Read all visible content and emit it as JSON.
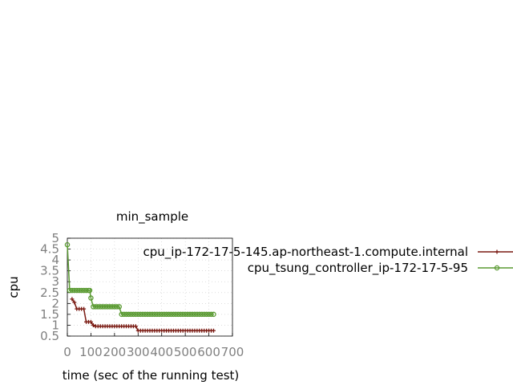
{
  "chart_data": {
    "type": "line",
    "title": "min_sample",
    "xlabel": "time (sec of the running test)",
    "ylabel": "cpu",
    "xlim": [
      0,
      700
    ],
    "ylim": [
      0.5,
      5
    ],
    "xticks": [
      0,
      100,
      200,
      300,
      400,
      500,
      600,
      700
    ],
    "yticks": [
      0.5,
      1,
      1.5,
      2,
      2.5,
      3,
      3.5,
      4,
      4.5,
      5
    ],
    "xtick_labels": [
      "0",
      "100",
      "200",
      "300",
      "400",
      "500",
      "600",
      "700"
    ],
    "ytick_labels": [
      "0.5",
      "1",
      "1.5",
      "2",
      "2.5",
      "3",
      "3.5",
      "4",
      "4.5",
      "5"
    ],
    "grid": true,
    "legend_position": "right",
    "series": [
      {
        "name": "cpu_ip-172-17-5-145.ap-northeast-1.compute.internal",
        "color": "#7a1a12",
        "marker": "plus",
        "points": [
          [
            20,
            2.2
          ],
          [
            30,
            2.05
          ],
          [
            40,
            1.75
          ],
          [
            50,
            1.75
          ],
          [
            60,
            1.75
          ],
          [
            70,
            1.75
          ],
          [
            80,
            1.15
          ],
          [
            90,
            1.15
          ],
          [
            100,
            1.15
          ],
          [
            110,
            1.0
          ],
          [
            120,
            0.95
          ],
          [
            130,
            0.95
          ],
          [
            140,
            0.95
          ],
          [
            150,
            0.95
          ],
          [
            160,
            0.95
          ],
          [
            170,
            0.95
          ],
          [
            180,
            0.95
          ],
          [
            190,
            0.95
          ],
          [
            200,
            0.95
          ],
          [
            210,
            0.95
          ],
          [
            220,
            0.95
          ],
          [
            230,
            0.95
          ],
          [
            240,
            0.95
          ],
          [
            250,
            0.95
          ],
          [
            260,
            0.95
          ],
          [
            270,
            0.95
          ],
          [
            280,
            0.95
          ],
          [
            290,
            0.95
          ],
          [
            300,
            0.75
          ],
          [
            310,
            0.75
          ],
          [
            320,
            0.75
          ],
          [
            330,
            0.75
          ],
          [
            340,
            0.75
          ],
          [
            350,
            0.75
          ],
          [
            360,
            0.75
          ],
          [
            370,
            0.75
          ],
          [
            380,
            0.75
          ],
          [
            390,
            0.75
          ],
          [
            400,
            0.75
          ],
          [
            410,
            0.75
          ],
          [
            420,
            0.75
          ],
          [
            430,
            0.75
          ],
          [
            440,
            0.75
          ],
          [
            450,
            0.75
          ],
          [
            460,
            0.75
          ],
          [
            470,
            0.75
          ],
          [
            480,
            0.75
          ],
          [
            490,
            0.75
          ],
          [
            500,
            0.75
          ],
          [
            510,
            0.75
          ],
          [
            520,
            0.75
          ],
          [
            530,
            0.75
          ],
          [
            540,
            0.75
          ],
          [
            550,
            0.75
          ],
          [
            560,
            0.75
          ],
          [
            570,
            0.75
          ],
          [
            580,
            0.75
          ],
          [
            590,
            0.75
          ],
          [
            600,
            0.75
          ],
          [
            610,
            0.75
          ],
          [
            620,
            0.75
          ]
        ]
      },
      {
        "name": "cpu_tsung_controller_ip-172-17-5-95",
        "color": "#5a9a32",
        "marker": "circle",
        "points": [
          [
            0,
            4.7
          ],
          [
            10,
            2.6
          ],
          [
            20,
            2.6
          ],
          [
            30,
            2.6
          ],
          [
            40,
            2.6
          ],
          [
            50,
            2.6
          ],
          [
            60,
            2.6
          ],
          [
            70,
            2.6
          ],
          [
            80,
            2.6
          ],
          [
            90,
            2.6
          ],
          [
            95,
            2.6
          ],
          [
            100,
            2.25
          ],
          [
            110,
            1.85
          ],
          [
            120,
            1.85
          ],
          [
            130,
            1.85
          ],
          [
            140,
            1.85
          ],
          [
            150,
            1.85
          ],
          [
            160,
            1.85
          ],
          [
            170,
            1.85
          ],
          [
            180,
            1.85
          ],
          [
            190,
            1.85
          ],
          [
            200,
            1.85
          ],
          [
            210,
            1.85
          ],
          [
            220,
            1.85
          ],
          [
            230,
            1.5
          ],
          [
            240,
            1.5
          ],
          [
            250,
            1.5
          ],
          [
            260,
            1.5
          ],
          [
            270,
            1.5
          ],
          [
            280,
            1.5
          ],
          [
            290,
            1.5
          ],
          [
            300,
            1.5
          ],
          [
            310,
            1.5
          ],
          [
            320,
            1.5
          ],
          [
            330,
            1.5
          ],
          [
            340,
            1.5
          ],
          [
            350,
            1.5
          ],
          [
            360,
            1.5
          ],
          [
            370,
            1.5
          ],
          [
            380,
            1.5
          ],
          [
            390,
            1.5
          ],
          [
            400,
            1.5
          ],
          [
            410,
            1.5
          ],
          [
            420,
            1.5
          ],
          [
            430,
            1.5
          ],
          [
            440,
            1.5
          ],
          [
            450,
            1.5
          ],
          [
            460,
            1.5
          ],
          [
            470,
            1.5
          ],
          [
            480,
            1.5
          ],
          [
            490,
            1.5
          ],
          [
            500,
            1.5
          ],
          [
            510,
            1.5
          ],
          [
            520,
            1.5
          ],
          [
            530,
            1.5
          ],
          [
            540,
            1.5
          ],
          [
            550,
            1.5
          ],
          [
            560,
            1.5
          ],
          [
            570,
            1.5
          ],
          [
            580,
            1.5
          ],
          [
            590,
            1.5
          ],
          [
            600,
            1.5
          ],
          [
            610,
            1.5
          ],
          [
            620,
            1.5
          ]
        ]
      }
    ]
  }
}
